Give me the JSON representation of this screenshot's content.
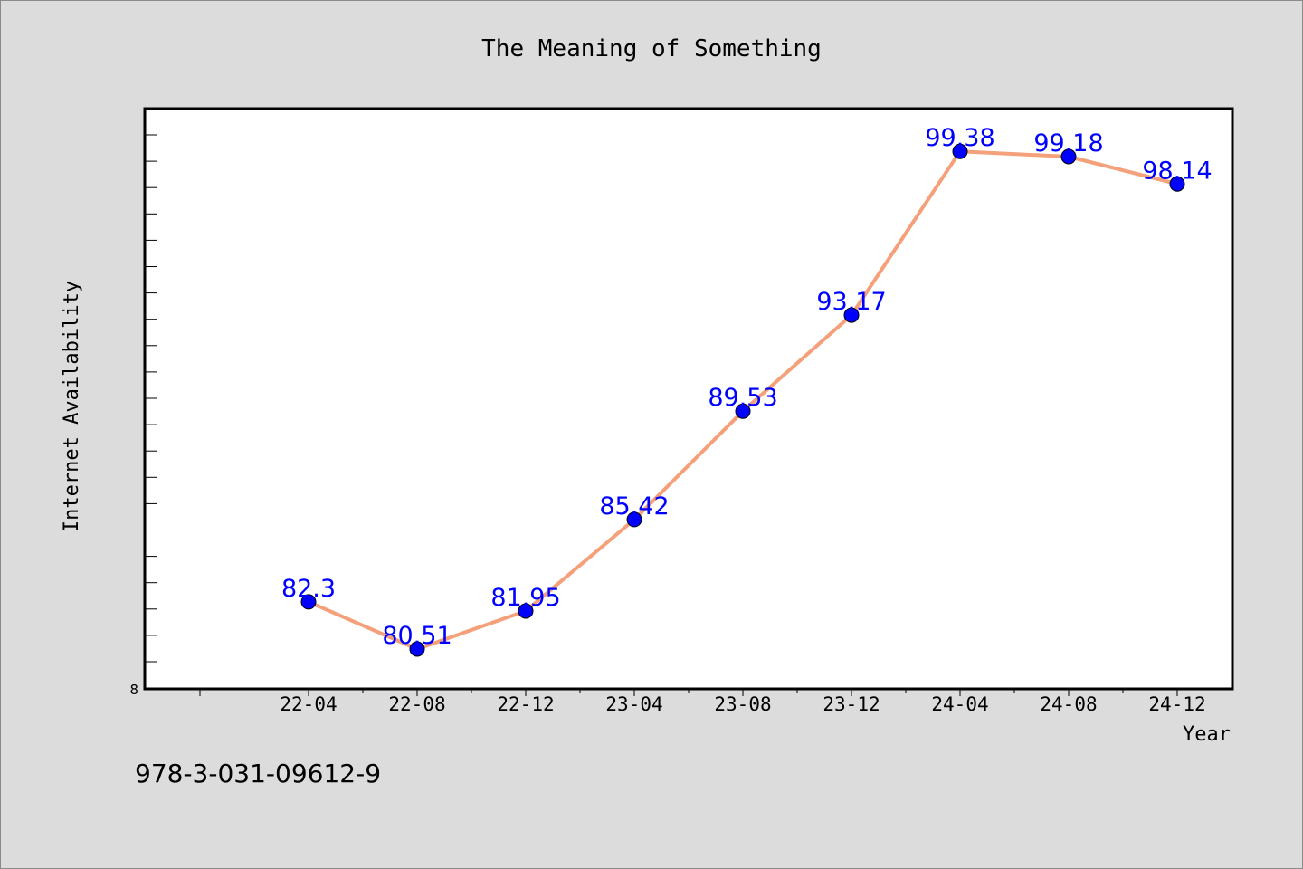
{
  "chart_data": {
    "type": "line",
    "title": "The Meaning of Something",
    "xlabel": "Year",
    "ylabel": "Internet Availability",
    "categories": [
      "22-04",
      "22-08",
      "22-12",
      "23-04",
      "23-08",
      "23-12",
      "24-04",
      "24-08",
      "24-12"
    ],
    "series": [
      {
        "values": [
          82.3,
          80.51,
          81.95,
          85.42,
          89.53,
          93.17,
          99.38,
          99.18,
          98.14
        ]
      }
    ],
    "data_labels": [
      "82.3",
      "80.51",
      "81.95",
      "85.42",
      "89.53",
      "93.17",
      "99.38",
      "99.18",
      "98.14"
    ],
    "ylim": [
      79.0,
      101.0
    ],
    "y_tick_label": "8",
    "grid": false,
    "colors": {
      "line": "#f4a07a",
      "marker": "#0000ff",
      "label": "#0000ff",
      "plot_bg": "#ffffff",
      "page_bg": "#dcdcdc"
    }
  },
  "footer": {
    "isbn": "978-3-031-09612-9"
  }
}
